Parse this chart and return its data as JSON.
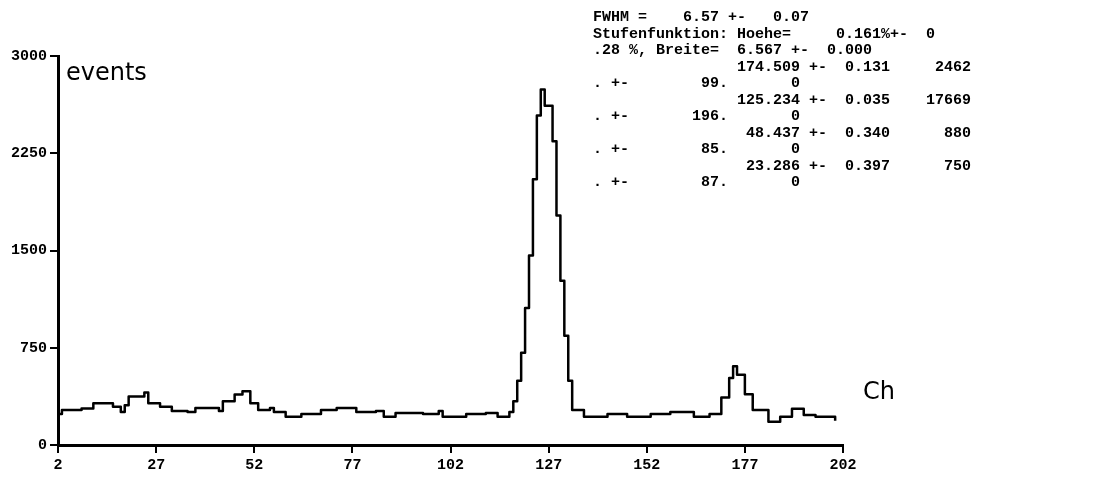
{
  "chart_data": {
    "type": "step",
    "xlabel": "Ch",
    "ylabel": "events",
    "annotations": [
      "FWHM =    6.57 +-   0.07",
      "Stufenfunktion: Hoehe=     0.161%+-  0",
      ".28 %, Breite=  6.567 +-  0.000",
      "                174.509 +-  0.131     2462",
      ". +-        99.       0",
      "                125.234 +-  0.035    17669",
      ". +-       196.       0",
      "                 48.437 +-  0.340      880",
      ". +-        85.       0",
      "                 23.286 +-  0.397      750",
      ". +-        87.       0"
    ],
    "x": [
      2,
      3,
      8,
      11,
      14,
      16,
      18,
      19,
      20,
      24,
      25,
      28,
      31,
      35,
      37,
      43,
      44,
      47,
      49,
      51,
      53,
      56,
      57,
      60,
      64,
      69,
      73,
      78,
      83,
      85,
      88,
      95,
      99,
      100,
      106,
      111,
      114,
      117,
      118,
      119,
      120,
      121,
      122,
      123,
      124,
      125,
      126,
      128,
      129,
      130,
      131,
      132,
      133,
      136,
      142,
      147,
      153,
      158,
      164,
      168,
      171,
      173,
      174,
      175,
      177,
      179,
      183,
      186,
      189,
      192,
      195,
      200
    ],
    "series": [
      {
        "color": "#000000",
        "values": [
          240,
          270,
          282,
          322,
          322,
          295,
          255,
          307,
          375,
          405,
          322,
          295,
          262,
          255,
          285,
          262,
          337,
          390,
          415,
          322,
          270,
          285,
          255,
          217,
          240,
          270,
          285,
          255,
          262,
          217,
          247,
          240,
          262,
          217,
          240,
          247,
          217,
          255,
          337,
          495,
          712,
          1057,
          1462,
          2050,
          2542,
          2742,
          2617,
          2342,
          1770,
          1267,
          842,
          495,
          270,
          217,
          240,
          217,
          240,
          255,
          217,
          240,
          367,
          517,
          607,
          542,
          392,
          270,
          180,
          217,
          280,
          232,
          217,
          187
        ]
      }
    ],
    "xlim": [
      2,
      202
    ],
    "ylim": [
      0,
      3000
    ],
    "xticks": [
      2,
      27,
      52,
      77,
      102,
      127,
      152,
      177,
      202
    ],
    "yticks": [
      0,
      750,
      1500,
      2250,
      3000
    ],
    "marker": "none",
    "line_style": "solid"
  }
}
